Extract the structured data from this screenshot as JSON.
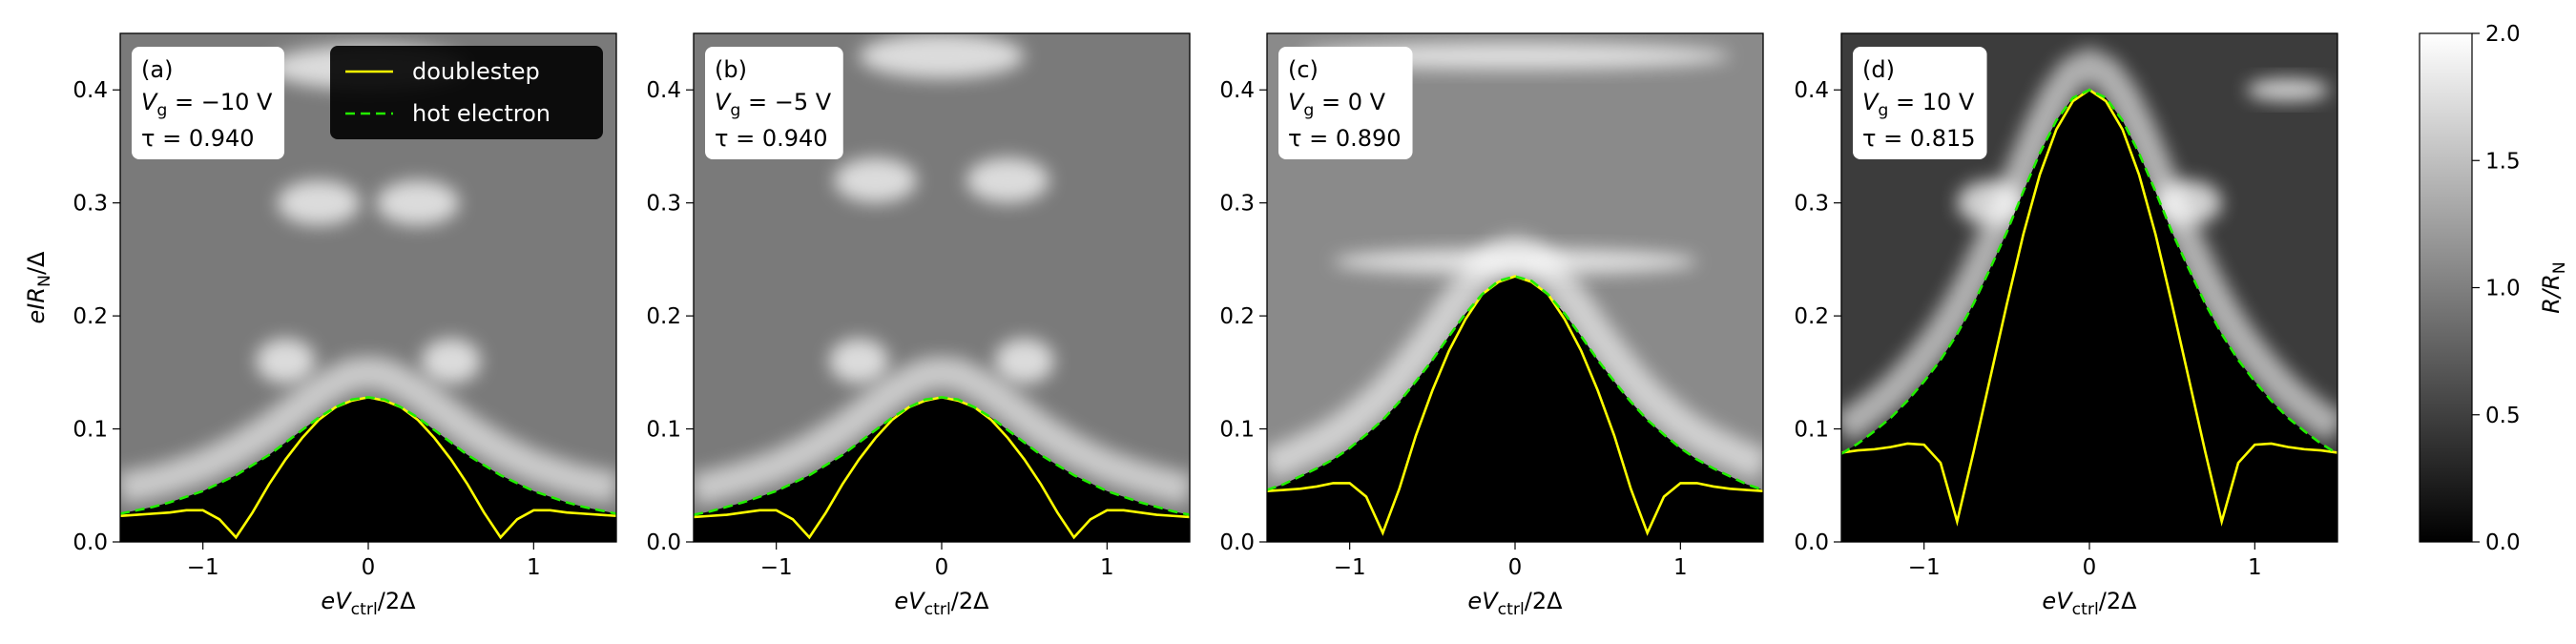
{
  "chart_data": [
    {
      "type": "line",
      "xlim": [
        -1.5,
        1.5
      ],
      "ylim": [
        0,
        0.45
      ],
      "xticks": [
        {
          "value": -1,
          "label": "−1"
        },
        0,
        1
      ],
      "yticks": [
        {
          "value": 0,
          "label": "0.0"
        },
        0.1,
        0.2,
        0.3,
        0.4
      ],
      "xlabel": {
        "main": "eV",
        "sub": "ctrl",
        "rest": "/2Δ"
      },
      "ylabel": {
        "main": "eIR",
        "sub": "N",
        "rest": "/Δ"
      },
      "annotation": {
        "label": "(a)",
        "gate": {
          "symbol": "V",
          "sub": "g",
          "rest": " = −10 V"
        },
        "tau": "τ = 0.940"
      },
      "legend": "upper right",
      "x": [
        -1.5,
        -1.4,
        -1.3,
        -1.2,
        -1.1,
        -1.0,
        -0.9,
        -0.8,
        -0.7,
        -0.6,
        -0.5,
        -0.4,
        -0.3,
        -0.2,
        -0.1,
        0,
        0.1,
        0.2,
        0.3,
        0.4,
        0.5,
        0.6,
        0.7,
        0.8,
        0.9,
        1.0,
        1.1,
        1.2,
        1.3,
        1.4,
        1.5
      ],
      "series": [
        {
          "name": "doublestep",
          "color": "#ffff00",
          "dashed": false,
          "values": [
            0.023,
            0.024,
            0.025,
            0.026,
            0.028,
            0.028,
            0.02,
            0.004,
            0.026,
            0.051,
            0.073,
            0.092,
            0.108,
            0.119,
            0.125,
            0.128,
            0.125,
            0.119,
            0.108,
            0.092,
            0.073,
            0.051,
            0.026,
            0.004,
            0.02,
            0.028,
            0.028,
            0.026,
            0.025,
            0.024,
            0.023
          ]
        },
        {
          "name": "hot electron",
          "color": "#22ee00",
          "dashed": true,
          "values": [
            0.025,
            0.028,
            0.031,
            0.035,
            0.04,
            0.045,
            0.052,
            0.059,
            0.068,
            0.077,
            0.088,
            0.099,
            0.11,
            0.119,
            0.126,
            0.128,
            0.126,
            0.119,
            0.11,
            0.099,
            0.088,
            0.077,
            0.068,
            0.059,
            0.052,
            0.045,
            0.04,
            0.035,
            0.031,
            0.028,
            0.025
          ]
        }
      ]
    },
    {
      "type": "line",
      "xlim": [
        -1.5,
        1.5
      ],
      "ylim": [
        0,
        0.45
      ],
      "xticks": [
        {
          "value": -1,
          "label": "−1"
        },
        0,
        1
      ],
      "yticks": [
        {
          "value": 0,
          "label": "0.0"
        },
        0.1,
        0.2,
        0.3,
        0.4
      ],
      "xlabel": {
        "main": "eV",
        "sub": "ctrl",
        "rest": "/2Δ"
      },
      "annotation": {
        "label": "(b)",
        "gate": {
          "symbol": "V",
          "sub": "g",
          "rest": " = −5 V"
        },
        "tau": "τ = 0.940"
      },
      "x": [
        -1.5,
        -1.4,
        -1.3,
        -1.2,
        -1.1,
        -1.0,
        -0.9,
        -0.8,
        -0.7,
        -0.6,
        -0.5,
        -0.4,
        -0.3,
        -0.2,
        -0.1,
        0,
        0.1,
        0.2,
        0.3,
        0.4,
        0.5,
        0.6,
        0.7,
        0.8,
        0.9,
        1.0,
        1.1,
        1.2,
        1.3,
        1.4,
        1.5
      ],
      "series": [
        {
          "color": "#ffff00",
          "dashed": false,
          "values": [
            0.022,
            0.023,
            0.024,
            0.026,
            0.028,
            0.028,
            0.02,
            0.004,
            0.026,
            0.051,
            0.073,
            0.092,
            0.108,
            0.119,
            0.125,
            0.128,
            0.125,
            0.119,
            0.108,
            0.092,
            0.073,
            0.051,
            0.026,
            0.004,
            0.02,
            0.028,
            0.028,
            0.026,
            0.024,
            0.023,
            0.022
          ]
        },
        {
          "color": "#22ee00",
          "dashed": true,
          "values": [
            0.024,
            0.027,
            0.031,
            0.035,
            0.04,
            0.045,
            0.052,
            0.059,
            0.068,
            0.077,
            0.088,
            0.099,
            0.11,
            0.119,
            0.126,
            0.128,
            0.126,
            0.119,
            0.11,
            0.099,
            0.088,
            0.077,
            0.068,
            0.059,
            0.052,
            0.045,
            0.04,
            0.035,
            0.031,
            0.027,
            0.024
          ]
        }
      ]
    },
    {
      "type": "line",
      "xlim": [
        -1.5,
        1.5
      ],
      "ylim": [
        0,
        0.45
      ],
      "xticks": [
        {
          "value": -1,
          "label": "−1"
        },
        0,
        1
      ],
      "yticks": [
        {
          "value": 0,
          "label": "0.0"
        },
        0.1,
        0.2,
        0.3,
        0.4
      ],
      "xlabel": {
        "main": "eV",
        "sub": "ctrl",
        "rest": "/2Δ"
      },
      "annotation": {
        "label": "(c)",
        "gate": {
          "symbol": "V",
          "sub": "g",
          "rest": " = 0 V"
        },
        "tau": "τ = 0.890"
      },
      "x": [
        -1.5,
        -1.4,
        -1.3,
        -1.2,
        -1.1,
        -1.0,
        -0.9,
        -0.8,
        -0.7,
        -0.6,
        -0.5,
        -0.4,
        -0.3,
        -0.2,
        -0.1,
        0,
        0.1,
        0.2,
        0.3,
        0.4,
        0.5,
        0.6,
        0.7,
        0.8,
        0.9,
        1.0,
        1.1,
        1.2,
        1.3,
        1.4,
        1.5
      ],
      "series": [
        {
          "color": "#ffff00",
          "dashed": false,
          "values": [
            0.045,
            0.046,
            0.047,
            0.049,
            0.052,
            0.052,
            0.04,
            0.008,
            0.047,
            0.094,
            0.134,
            0.169,
            0.197,
            0.219,
            0.23,
            0.235,
            0.23,
            0.219,
            0.197,
            0.169,
            0.134,
            0.094,
            0.047,
            0.008,
            0.04,
            0.052,
            0.052,
            0.049,
            0.047,
            0.046,
            0.045
          ]
        },
        {
          "color": "#22ee00",
          "dashed": true,
          "values": [
            0.046,
            0.051,
            0.058,
            0.065,
            0.073,
            0.083,
            0.095,
            0.108,
            0.124,
            0.142,
            0.161,
            0.182,
            0.202,
            0.219,
            0.231,
            0.235,
            0.231,
            0.219,
            0.202,
            0.182,
            0.161,
            0.142,
            0.124,
            0.108,
            0.095,
            0.083,
            0.073,
            0.065,
            0.058,
            0.051,
            0.046
          ]
        }
      ]
    },
    {
      "type": "line",
      "xlim": [
        -1.5,
        1.5
      ],
      "ylim": [
        0,
        0.45
      ],
      "xticks": [
        {
          "value": -1,
          "label": "−1"
        },
        0,
        1
      ],
      "yticks": [
        {
          "value": 0,
          "label": "0.0"
        },
        0.1,
        0.2,
        0.3,
        0.4
      ],
      "xlabel": {
        "main": "eV",
        "sub": "ctrl",
        "rest": "/2Δ"
      },
      "annotation": {
        "label": "(d)",
        "gate": {
          "symbol": "V",
          "sub": "g",
          "rest": " = 10 V"
        },
        "tau": "τ = 0.815"
      },
      "x": [
        -1.5,
        -1.4,
        -1.3,
        -1.2,
        -1.1,
        -1.0,
        -0.9,
        -0.8,
        -0.7,
        -0.6,
        -0.5,
        -0.4,
        -0.3,
        -0.2,
        -0.1,
        0,
        0.1,
        0.2,
        0.3,
        0.4,
        0.5,
        0.6,
        0.7,
        0.8,
        0.9,
        1.0,
        1.1,
        1.2,
        1.3,
        1.4,
        1.5
      ],
      "series": [
        {
          "color": "#ffff00",
          "dashed": false,
          "values": [
            0.079,
            0.081,
            0.082,
            0.084,
            0.087,
            0.086,
            0.07,
            0.018,
            0.08,
            0.145,
            0.21,
            0.272,
            0.325,
            0.365,
            0.39,
            0.4,
            0.39,
            0.365,
            0.325,
            0.272,
            0.21,
            0.145,
            0.08,
            0.018,
            0.07,
            0.086,
            0.087,
            0.084,
            0.082,
            0.081,
            0.079
          ]
        },
        {
          "color": "#22ee00",
          "dashed": true,
          "values": [
            0.078,
            0.087,
            0.098,
            0.11,
            0.125,
            0.142,
            0.161,
            0.184,
            0.211,
            0.242,
            0.274,
            0.31,
            0.344,
            0.373,
            0.393,
            0.4,
            0.393,
            0.373,
            0.344,
            0.31,
            0.274,
            0.242,
            0.211,
            0.184,
            0.161,
            0.142,
            0.125,
            0.11,
            0.098,
            0.087,
            0.078
          ]
        }
      ]
    },
    {
      "type": "colorbar",
      "colormap": "gray",
      "ylim": [
        0,
        2
      ],
      "yticks": [
        {
          "value": 0,
          "label": "0.0"
        },
        {
          "value": 0.5,
          "label": "0.5"
        },
        {
          "value": 1,
          "label": "1.0"
        },
        {
          "value": 1.5,
          "label": "1.5"
        },
        {
          "value": 2,
          "label": "2.0"
        }
      ],
      "ylabel": {
        "main": "R/R",
        "sub": "N"
      }
    }
  ]
}
